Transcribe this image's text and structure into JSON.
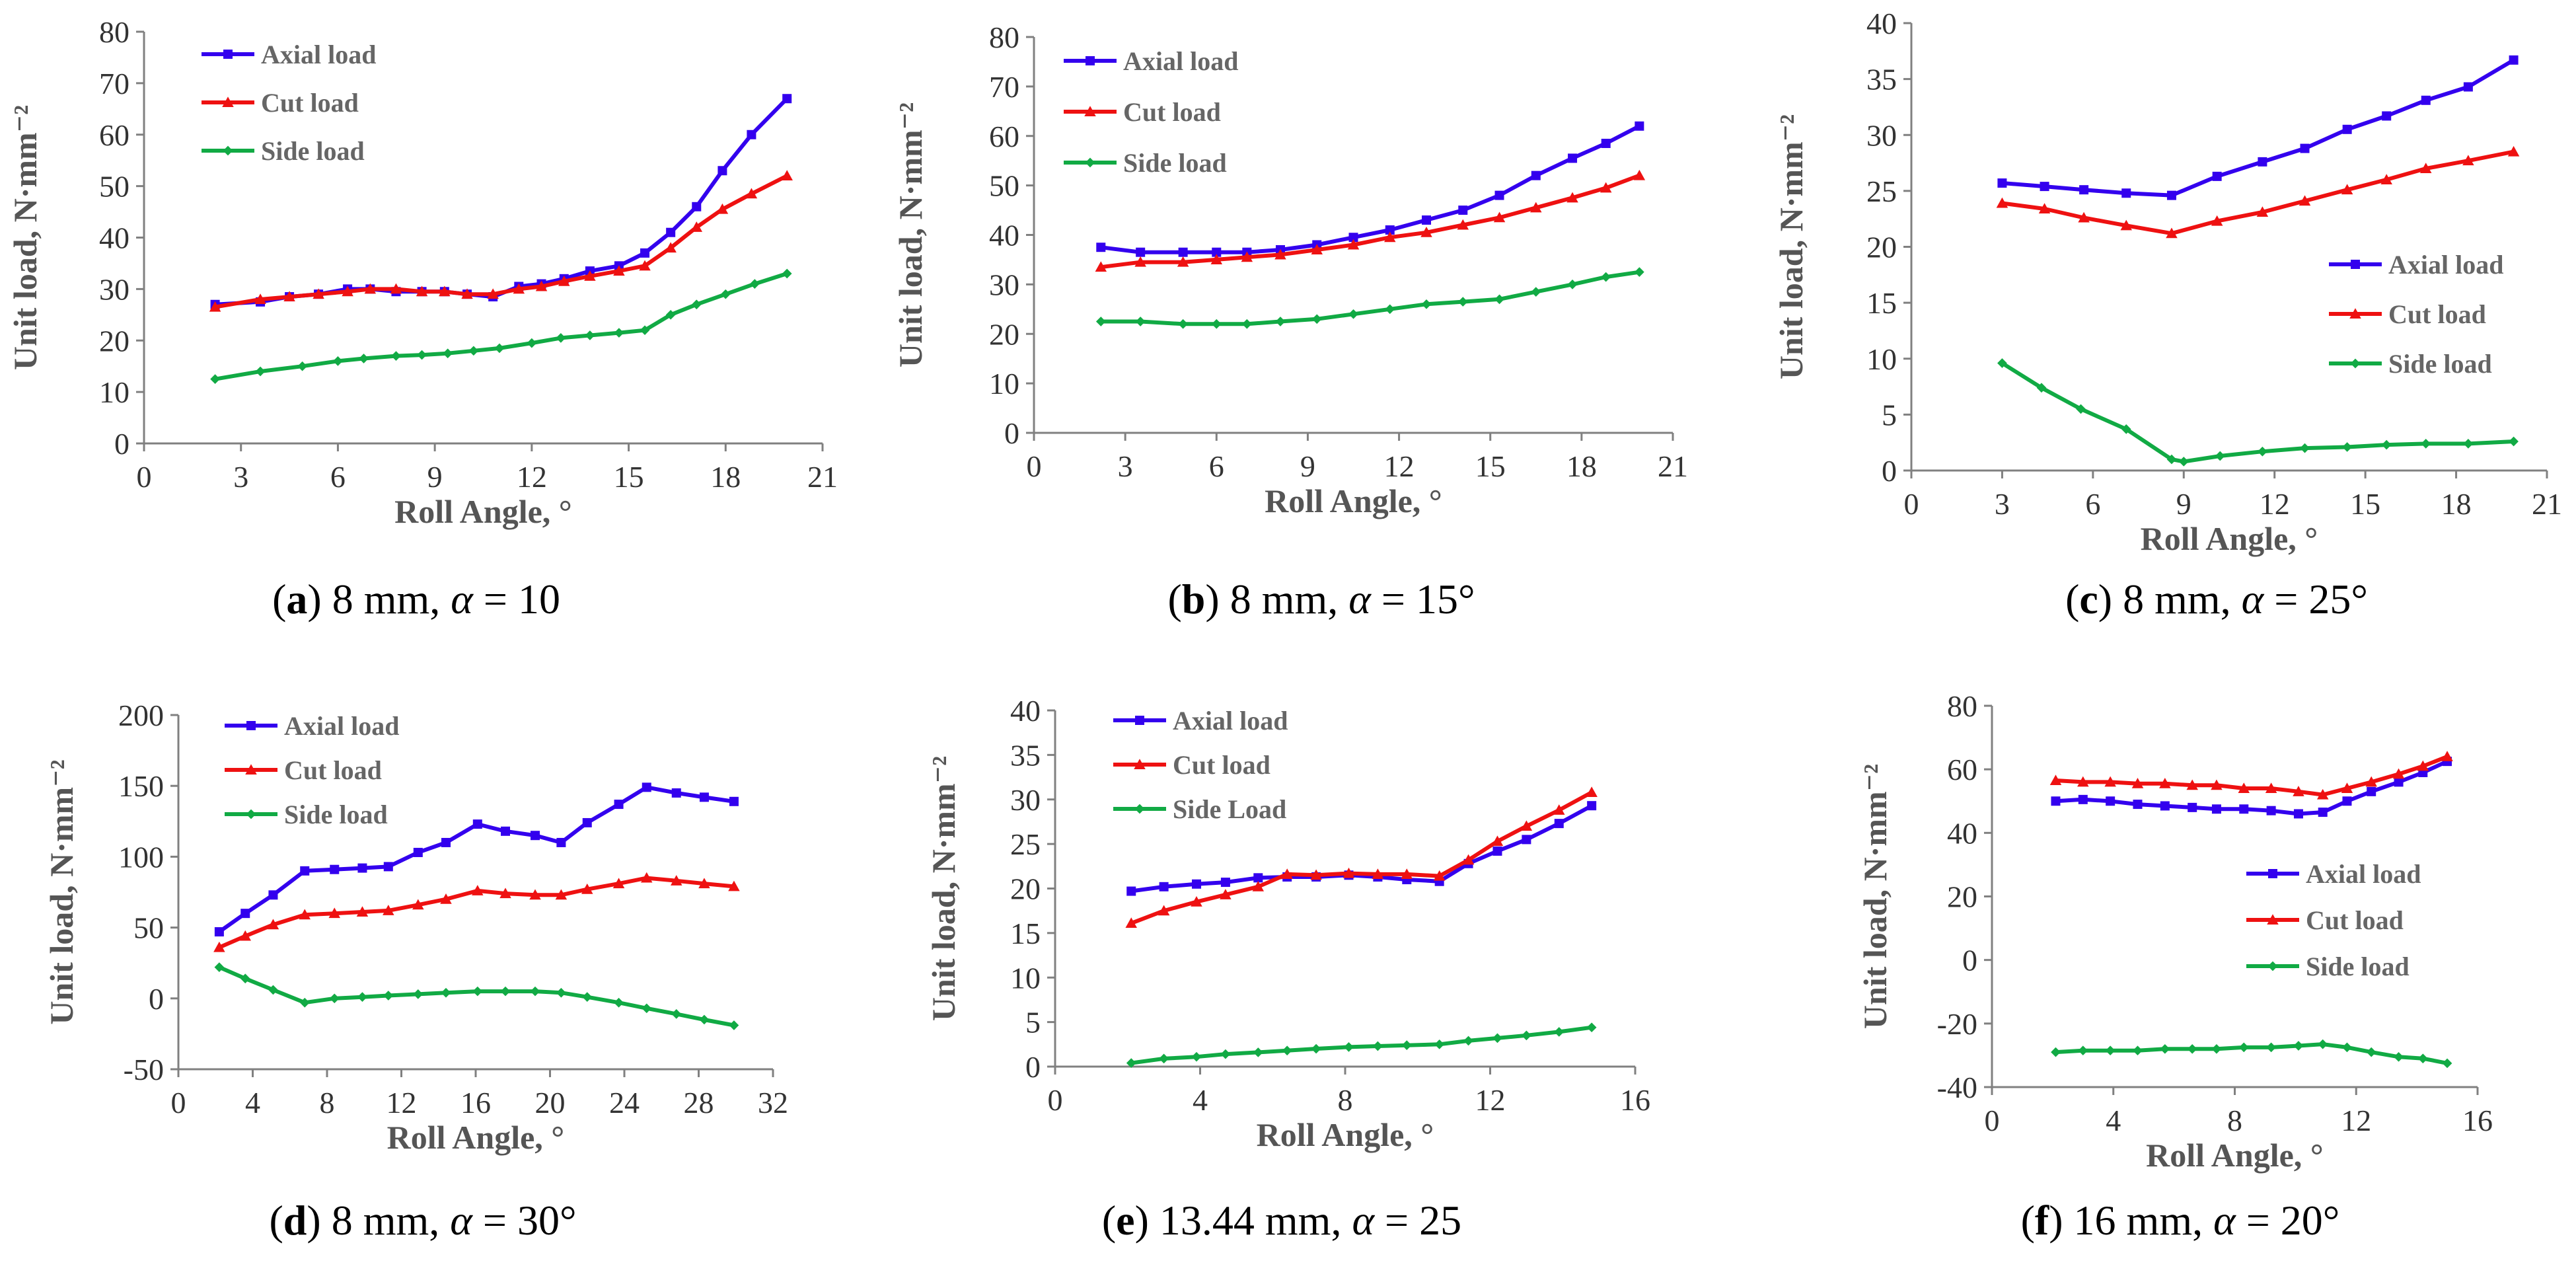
{
  "colors": {
    "axial": "#3300ee",
    "cut": "#ee1111",
    "side": "#11aa44",
    "axis": "#808080"
  },
  "chart_data": [
    {
      "id": "a",
      "type": "line",
      "caption": {
        "letter": "a",
        "text": " 8 mm, ",
        "alpha": "α",
        "rest": " = 10"
      },
      "xlabel": "Roll Angle, °",
      "ylabel": "Unit load, N·mm⁻²",
      "xlim": [
        0,
        21
      ],
      "ylim": [
        0,
        80
      ],
      "xticks": [
        0,
        3,
        6,
        9,
        12,
        15,
        18,
        21
      ],
      "yticks": [
        0,
        10,
        20,
        30,
        40,
        50,
        60,
        70,
        80
      ],
      "legend_position": "top-left",
      "series": [
        {
          "name": "Axial load",
          "marker": "square",
          "x": [
            2.2,
            3.6,
            4.5,
            5.4,
            6.3,
            7.0,
            7.8,
            8.6,
            9.3,
            10.0,
            10.8,
            11.6,
            12.3,
            13.0,
            13.8,
            14.7,
            15.5,
            16.3,
            17.1,
            17.9,
            18.8,
            19.9
          ],
          "y": [
            27,
            27.5,
            28.5,
            29,
            30,
            30,
            29.5,
            29.5,
            29.5,
            29,
            28.5,
            30.5,
            31,
            32,
            33.5,
            34.5,
            37,
            41,
            46,
            53,
            60,
            67
          ]
        },
        {
          "name": "Cut load",
          "marker": "triangle",
          "x": [
            2.2,
            3.6,
            4.5,
            5.4,
            6.3,
            7.0,
            7.8,
            8.6,
            9.3,
            10.0,
            10.8,
            11.6,
            12.3,
            13.0,
            13.8,
            14.7,
            15.5,
            16.3,
            17.1,
            17.9,
            18.8,
            19.9
          ],
          "y": [
            26.5,
            28,
            28.5,
            29,
            29.5,
            30,
            30,
            29.5,
            29.5,
            29,
            29,
            30,
            30.5,
            31.5,
            32.5,
            33.5,
            34.5,
            38,
            42,
            45.5,
            48.5,
            52
          ]
        },
        {
          "name": "Side load",
          "marker": "diamond",
          "x": [
            2.2,
            3.6,
            4.9,
            6.0,
            6.8,
            7.8,
            8.6,
            9.4,
            10.2,
            11.0,
            12.0,
            12.9,
            13.8,
            14.7,
            15.5,
            16.3,
            17.1,
            18.0,
            18.9,
            19.9
          ],
          "y": [
            12.5,
            14,
            15,
            16,
            16.5,
            17,
            17.2,
            17.5,
            18,
            18.5,
            19.5,
            20.5,
            21,
            21.5,
            22,
            25,
            27,
            29,
            31,
            33
          ]
        }
      ]
    },
    {
      "id": "b",
      "type": "line",
      "caption": {
        "letter": "b",
        "text": " 8 mm, ",
        "alpha": "α",
        "rest": " = 15°"
      },
      "xlabel": "Roll Angle, °",
      "ylabel": "Unit load, N·mm⁻²",
      "xlim": [
        0,
        21
      ],
      "ylim": [
        0,
        80
      ],
      "xticks": [
        0,
        3,
        6,
        9,
        12,
        15,
        18,
        21
      ],
      "yticks": [
        0,
        10,
        20,
        30,
        40,
        50,
        60,
        70,
        80
      ],
      "legend_position": "top-left",
      "series": [
        {
          "name": "Axial load",
          "marker": "square",
          "x": [
            2.2,
            3.5,
            4.9,
            6.0,
            7.0,
            8.1,
            9.3,
            10.5,
            11.7,
            12.9,
            14.1,
            15.3,
            16.5,
            17.7,
            18.8,
            19.9
          ],
          "y": [
            37.5,
            36.5,
            36.5,
            36.5,
            36.5,
            37,
            38,
            39.5,
            41,
            43,
            45,
            48,
            52,
            55.5,
            58.5,
            62
          ]
        },
        {
          "name": "Cut load",
          "marker": "triangle",
          "x": [
            2.2,
            3.5,
            4.9,
            6.0,
            7.0,
            8.1,
            9.3,
            10.5,
            11.7,
            12.9,
            14.1,
            15.3,
            16.5,
            17.7,
            18.8,
            19.9
          ],
          "y": [
            33.5,
            34.5,
            34.5,
            35,
            35.5,
            36,
            37,
            38,
            39.5,
            40.5,
            42,
            43.5,
            45.5,
            47.5,
            49.5,
            52
          ]
        },
        {
          "name": "Side load",
          "marker": "diamond",
          "x": [
            2.2,
            3.5,
            4.9,
            6.0,
            7.0,
            8.1,
            9.3,
            10.5,
            11.7,
            12.9,
            14.1,
            15.3,
            16.5,
            17.7,
            18.8,
            19.9
          ],
          "y": [
            22.5,
            22.5,
            22,
            22,
            22,
            22.5,
            23,
            24,
            25,
            26,
            26.5,
            27,
            28.5,
            30,
            31.5,
            32.5
          ]
        }
      ]
    },
    {
      "id": "c",
      "type": "line",
      "caption": {
        "letter": "c",
        "text": " 8 mm, ",
        "alpha": "α",
        "rest": " = 25°"
      },
      "xlabel": "Roll Angle, °",
      "ylabel": "Unit load, N·mm⁻²",
      "xlim": [
        0,
        21
      ],
      "ylim": [
        0,
        40
      ],
      "xticks": [
        0,
        3,
        6,
        9,
        12,
        15,
        18,
        21
      ],
      "yticks": [
        0,
        5,
        10,
        15,
        20,
        25,
        30,
        35,
        40
      ],
      "legend_position": "middle-right",
      "series": [
        {
          "name": "Axial load",
          "marker": "square",
          "x": [
            3.0,
            4.4,
            5.7,
            7.1,
            8.6,
            10.1,
            11.6,
            13.0,
            14.4,
            15.7,
            17.0,
            18.4,
            19.9
          ],
          "y": [
            25.7,
            25.4,
            25.1,
            24.8,
            24.6,
            26.3,
            27.6,
            28.8,
            30.5,
            31.7,
            33.1,
            34.3,
            36.7
          ]
        },
        {
          "name": "Cut load",
          "marker": "triangle",
          "x": [
            3.0,
            4.4,
            5.7,
            7.1,
            8.6,
            10.1,
            11.6,
            13.0,
            14.4,
            15.7,
            17.0,
            18.4,
            19.9
          ],
          "y": [
            23.9,
            23.4,
            22.6,
            21.9,
            21.2,
            22.3,
            23.1,
            24.1,
            25.1,
            26,
            27,
            27.7,
            28.5
          ]
        },
        {
          "name": "Side load",
          "marker": "diamond",
          "x": [
            3.0,
            4.3,
            5.6,
            7.1,
            8.6,
            9.0,
            10.2,
            11.6,
            13.0,
            14.4,
            15.7,
            17.0,
            18.4,
            19.9
          ],
          "y": [
            9.6,
            7.4,
            5.5,
            3.7,
            1.0,
            0.8,
            1.3,
            1.7,
            2.0,
            2.1,
            2.3,
            2.4,
            2.4,
            2.6
          ]
        }
      ]
    },
    {
      "id": "d",
      "type": "line",
      "caption": {
        "letter": "d",
        "text": " 8 mm, ",
        "alpha": "α",
        "rest": " = 30°"
      },
      "xlabel": "Roll Angle, °",
      "ylabel": "Unit load, N·mm⁻²",
      "xlim": [
        0,
        32
      ],
      "ylim": [
        -50,
        200
      ],
      "xticks": [
        0,
        4,
        8,
        12,
        16,
        20,
        24,
        28,
        32
      ],
      "yticks": [
        -50,
        0,
        50,
        100,
        150,
        200
      ],
      "legend_position": "top-left",
      "series": [
        {
          "name": "Axial load",
          "marker": "square",
          "x": [
            2.2,
            3.6,
            5.1,
            6.8,
            8.4,
            9.9,
            11.3,
            12.9,
            14.4,
            16.1,
            17.6,
            19.2,
            20.6,
            22.0,
            23.7,
            25.2,
            26.8,
            28.3,
            29.9
          ],
          "y": [
            47,
            60,
            73,
            90,
            91,
            92,
            93,
            103,
            110,
            123,
            118,
            115,
            110,
            124,
            137,
            149,
            145,
            142,
            139
          ]
        },
        {
          "name": "Cut load",
          "marker": "triangle",
          "x": [
            2.2,
            3.6,
            5.1,
            6.8,
            8.4,
            9.9,
            11.3,
            12.9,
            14.4,
            16.1,
            17.6,
            19.2,
            20.6,
            22.0,
            23.7,
            25.2,
            26.8,
            28.3,
            29.9
          ],
          "y": [
            36,
            44,
            52,
            59,
            60,
            61,
            62,
            66,
            70,
            76,
            74,
            73,
            73,
            77,
            81,
            85,
            83,
            81,
            79
          ]
        },
        {
          "name": "Side load",
          "marker": "diamond",
          "x": [
            2.2,
            3.6,
            5.1,
            6.8,
            8.4,
            9.9,
            11.3,
            12.9,
            14.4,
            16.1,
            17.6,
            19.2,
            20.6,
            22.0,
            23.7,
            25.2,
            26.8,
            28.3,
            29.9
          ],
          "y": [
            22,
            14,
            6,
            -3,
            0,
            1,
            2,
            3,
            4,
            5,
            5,
            5,
            4,
            1,
            -3,
            -7,
            -11,
            -15,
            -19
          ]
        }
      ]
    },
    {
      "id": "e",
      "type": "line",
      "caption": {
        "letter": "e",
        "text": " 13.44 mm, ",
        "alpha": "α",
        "rest": " = 25"
      },
      "xlabel": "Roll Angle, °",
      "ylabel": "Unit load, N·mm⁻²",
      "xlim": [
        0,
        16
      ],
      "ylim": [
        0,
        40
      ],
      "xticks": [
        0,
        4,
        8,
        12,
        16
      ],
      "yticks": [
        0,
        5,
        10,
        15,
        20,
        25,
        30,
        35,
        40
      ],
      "legend_position": "top-left",
      "series": [
        {
          "name": "Axial load",
          "marker": "square",
          "x": [
            2.1,
            3.0,
            3.9,
            4.7,
            5.6,
            6.4,
            7.2,
            8.1,
            8.9,
            9.7,
            10.6,
            11.4,
            12.2,
            13.0,
            13.9,
            14.8
          ],
          "y": [
            19.7,
            20.2,
            20.5,
            20.7,
            21.2,
            21.3,
            21.3,
            21.5,
            21.3,
            21.0,
            20.8,
            22.8,
            24.2,
            25.5,
            27.3,
            29.3
          ]
        },
        {
          "name": "Cut load",
          "marker": "triangle",
          "x": [
            2.1,
            3.0,
            3.9,
            4.7,
            5.6,
            6.4,
            7.2,
            8.1,
            8.9,
            9.7,
            10.6,
            11.4,
            12.2,
            13.0,
            13.9,
            14.8
          ],
          "y": [
            16.1,
            17.5,
            18.5,
            19.3,
            20.2,
            21.6,
            21.5,
            21.7,
            21.6,
            21.6,
            21.4,
            23.2,
            25.3,
            27.0,
            28.8,
            30.8
          ]
        },
        {
          "name": "Side Load",
          "marker": "diamond",
          "x": [
            2.1,
            3.0,
            3.9,
            4.7,
            5.6,
            6.4,
            7.2,
            8.1,
            8.9,
            9.7,
            10.6,
            11.4,
            12.2,
            13.0,
            13.9,
            14.8
          ],
          "y": [
            0.4,
            0.9,
            1.1,
            1.4,
            1.6,
            1.8,
            2.0,
            2.2,
            2.3,
            2.4,
            2.5,
            2.9,
            3.2,
            3.5,
            3.9,
            4.4
          ]
        }
      ]
    },
    {
      "id": "f",
      "type": "line",
      "caption": {
        "letter": "f",
        "text": " 16 mm, ",
        "alpha": "α",
        "rest": " = 20°"
      },
      "xlabel": "Roll Angle, °",
      "ylabel": "Unit load, N·mm⁻²",
      "xlim": [
        0,
        16
      ],
      "ylim": [
        -40,
        80
      ],
      "xticks": [
        0,
        4,
        8,
        12,
        16
      ],
      "yticks": [
        -40,
        -20,
        0,
        20,
        40,
        60,
        80
      ],
      "legend_position": "middle-right",
      "series": [
        {
          "name": "Axial load",
          "marker": "square",
          "x": [
            2.1,
            3.0,
            3.9,
            4.8,
            5.7,
            6.6,
            7.4,
            8.3,
            9.2,
            10.1,
            10.9,
            11.7,
            12.5,
            13.4,
            14.2,
            15.0
          ],
          "y": [
            50,
            50.5,
            50,
            49,
            48.5,
            48,
            47.5,
            47.5,
            47,
            46,
            46.5,
            50,
            53,
            56,
            59,
            62.5
          ]
        },
        {
          "name": "Cut load",
          "marker": "triangle",
          "x": [
            2.1,
            3.0,
            3.9,
            4.8,
            5.7,
            6.6,
            7.4,
            8.3,
            9.2,
            10.1,
            10.9,
            11.7,
            12.5,
            13.4,
            14.2,
            15.0
          ],
          "y": [
            56.5,
            56,
            56,
            55.5,
            55.5,
            55,
            55,
            54,
            54,
            53,
            52,
            54,
            56,
            58.5,
            61,
            64
          ]
        },
        {
          "name": "Side load",
          "marker": "diamond",
          "x": [
            2.1,
            3.0,
            3.9,
            4.8,
            5.7,
            6.6,
            7.4,
            8.3,
            9.2,
            10.1,
            10.9,
            11.7,
            12.5,
            13.4,
            14.2,
            15.0
          ],
          "y": [
            -29,
            -28.5,
            -28.5,
            -28.5,
            -28,
            -28,
            -28,
            -27.5,
            -27.5,
            -27,
            -26.5,
            -27.5,
            -29,
            -30.5,
            -31,
            -32.5
          ]
        }
      ]
    }
  ]
}
